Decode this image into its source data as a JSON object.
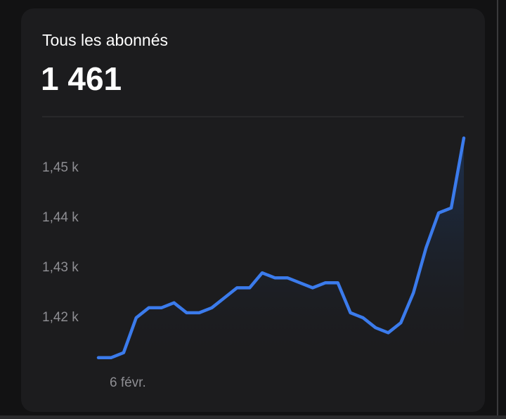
{
  "card": {
    "title": "Tous les abonnés",
    "total": "1 461"
  },
  "chart_data": {
    "type": "line",
    "categories": [
      null,
      null,
      "6 févr.",
      null,
      null,
      null,
      null,
      null,
      null,
      null,
      null,
      null,
      null,
      null,
      null,
      null,
      null,
      null,
      null,
      null,
      null,
      null,
      null,
      null,
      null,
      null,
      null,
      null,
      null,
      null
    ],
    "values": [
      1412,
      1412,
      1413,
      1420,
      1422,
      1422,
      1423,
      1421,
      1421,
      1422,
      1424,
      1426,
      1426,
      1429,
      1428,
      1428,
      1427,
      1426,
      1427,
      1427,
      1421,
      1420,
      1418,
      1417,
      1419,
      1425,
      1434,
      1441,
      1442,
      1456
    ],
    "color": "#3b7bec",
    "ylim": [
      1410,
      1460
    ],
    "yticks": [
      {
        "value": 1420,
        "label": "1,42 k"
      },
      {
        "value": 1430,
        "label": "1,43 k"
      },
      {
        "value": 1440,
        "label": "1,44 k"
      },
      {
        "value": 1450,
        "label": "1,45 k"
      }
    ]
  }
}
